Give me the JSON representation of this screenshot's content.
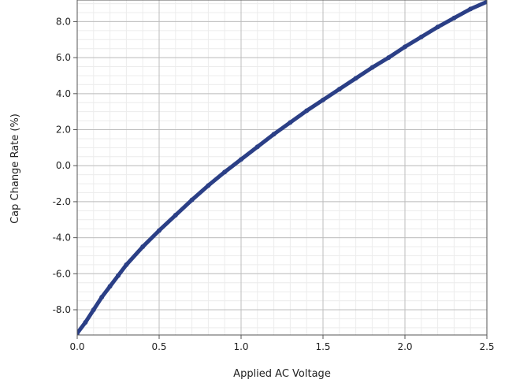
{
  "chart_data": {
    "type": "line",
    "title": "",
    "xlabel": "Applied AC Voltage",
    "ylabel": "Cap Change Rate (%)",
    "xlim": [
      0.0,
      2.5
    ],
    "ylim": [
      -9.4,
      9.2
    ],
    "x_ticks": [
      0.0,
      0.5,
      1.0,
      1.5,
      2.0,
      2.5
    ],
    "x_tick_labels": [
      "0.0",
      "0.5",
      "1.0",
      "1.5",
      "2.0",
      "2.5"
    ],
    "y_ticks": [
      -8.0,
      -6.0,
      -4.0,
      -2.0,
      0.0,
      2.0,
      4.0,
      6.0,
      8.0
    ],
    "y_tick_labels": [
      "-8.0",
      "-6.0",
      "-4.0",
      "-2.0",
      "0.0",
      "2.0",
      "4.0",
      "6.0",
      "8.0"
    ],
    "x_minor_step": 0.1,
    "y_minor_step": 0.5,
    "grid": true,
    "legend": "none",
    "series": [
      {
        "color": "#2b3f86",
        "x": [
          0.0,
          0.05,
          0.1,
          0.15,
          0.2,
          0.25,
          0.3,
          0.4,
          0.5,
          0.6,
          0.7,
          0.8,
          0.9,
          1.0,
          1.1,
          1.2,
          1.3,
          1.4,
          1.5,
          1.6,
          1.7,
          1.8,
          1.9,
          2.0,
          2.1,
          2.2,
          2.3,
          2.4,
          2.5
        ],
        "y": [
          -9.3,
          -8.7,
          -8.0,
          -7.3,
          -6.7,
          -6.1,
          -5.5,
          -4.5,
          -3.6,
          -2.75,
          -1.9,
          -1.1,
          -0.35,
          0.35,
          1.05,
          1.75,
          2.4,
          3.05,
          3.65,
          4.25,
          4.85,
          5.45,
          6.0,
          6.6,
          7.15,
          7.7,
          8.2,
          8.7,
          9.1
        ]
      }
    ]
  }
}
